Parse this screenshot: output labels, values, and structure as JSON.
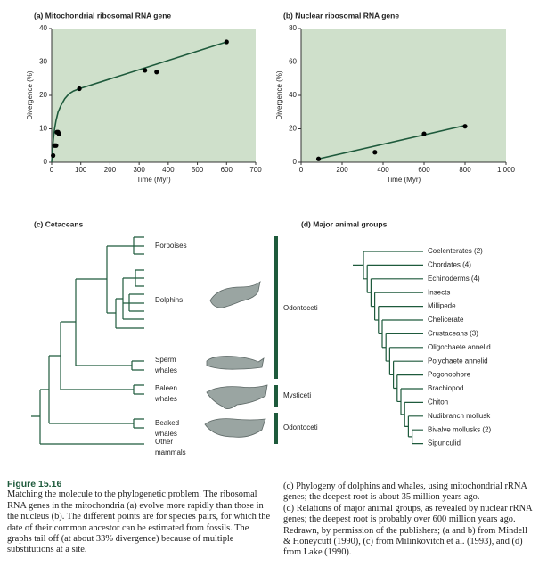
{
  "chart_data": [
    {
      "type": "scatter",
      "title": "(a) Mitochondrial ribosomal RNA gene",
      "xlabel": "Time (Myr)",
      "ylabel": "Divergence (%)",
      "x": [
        5,
        10,
        15,
        18,
        22,
        25,
        95,
        320,
        360,
        600
      ],
      "values": [
        2,
        5,
        5,
        9,
        9,
        8.5,
        22,
        27.5,
        27,
        36
      ],
      "curve_x": [
        0,
        3,
        6,
        10,
        15,
        22,
        32,
        45,
        60,
        75,
        95,
        600
      ],
      "curve_values": [
        0,
        4,
        7,
        10,
        12.5,
        15,
        17,
        19,
        20.5,
        21.3,
        22,
        36
      ],
      "xlim": [
        0,
        700
      ],
      "xticks": [
        0,
        100,
        200,
        300,
        400,
        500,
        600,
        700
      ],
      "ylim": [
        0,
        40
      ],
      "yticks": [
        0,
        10,
        20,
        30,
        40
      ],
      "color": "#000000",
      "background": "#cfe0cb"
    },
    {
      "type": "scatter",
      "title": "(b) Nuclear ribosomal RNA gene",
      "xlabel": "Time (Myr)",
      "ylabel": "Divergence (%)",
      "x": [
        85,
        360,
        600,
        800
      ],
      "values": [
        2,
        6,
        17,
        21.5
      ],
      "curve_x": [
        85,
        800
      ],
      "curve_values": [
        2,
        22
      ],
      "xlim": [
        0,
        1000
      ],
      "xticks": [
        0,
        200,
        400,
        600,
        800,
        {
          "value": 1000,
          "label": "1,000"
        }
      ],
      "ylim": [
        0,
        80
      ],
      "yticks": [
        0,
        20,
        40,
        60,
        80
      ],
      "color": "#000000",
      "background": "#cfe0cb"
    }
  ],
  "cetaceans": {
    "title": "(c) Cetaceans",
    "leaves": [
      [
        "Porpoises"
      ],
      [
        "Dolphins"
      ],
      [
        "Sperm",
        "whales"
      ],
      [
        "Baleen",
        "whales"
      ],
      [
        "Beaked",
        "whales"
      ],
      [
        "Other",
        "mammals"
      ]
    ],
    "groups": [
      "Odontoceti",
      "Mysticeti",
      "Odontoceti"
    ]
  },
  "animal_groups": {
    "title": "(d) Major animal groups",
    "leaves": [
      "Coelenterates (2)",
      "Chordates (4)",
      "Echinoderms (4)",
      "Insects",
      "Millipede",
      "Chelicerate",
      "Crustaceans (3)",
      "Oligochaete annelid",
      "Polychaete annelid",
      "Pogonophore",
      "Brachiopod",
      "Chiton",
      "Nudibranch mollusk",
      "Bivalve mollusks (2)",
      "Sipunculid"
    ]
  },
  "caption": {
    "figure": "Figure 15.16",
    "left": "Matching the molecule to the phylogenetic problem. The ribosomal RNA genes in the mitochondria (a) evolve more rapidly than those in the nucleus (b). The different points are for species pairs, for which the date of their common ancestor can be estimated from fossils. The graphs tail off (at about 33% divergence) because of multiple substitutions at a site.",
    "right": [
      "(c) Phylogeny of dolphins and whales, using mitochondrial rRNA genes; the deepest root is about 35 million years ago.",
      "(d) Relations of major animal groups, as revealed by nuclear rRNA genes; the deepest root is probably over 600 million years ago. Redrawn, by permission of the publishers; (a and b) from Mindell & Honeycutt (1990), (c) from Milinkovitch et al. (1993), and (d) from Lake (1990)."
    ]
  }
}
